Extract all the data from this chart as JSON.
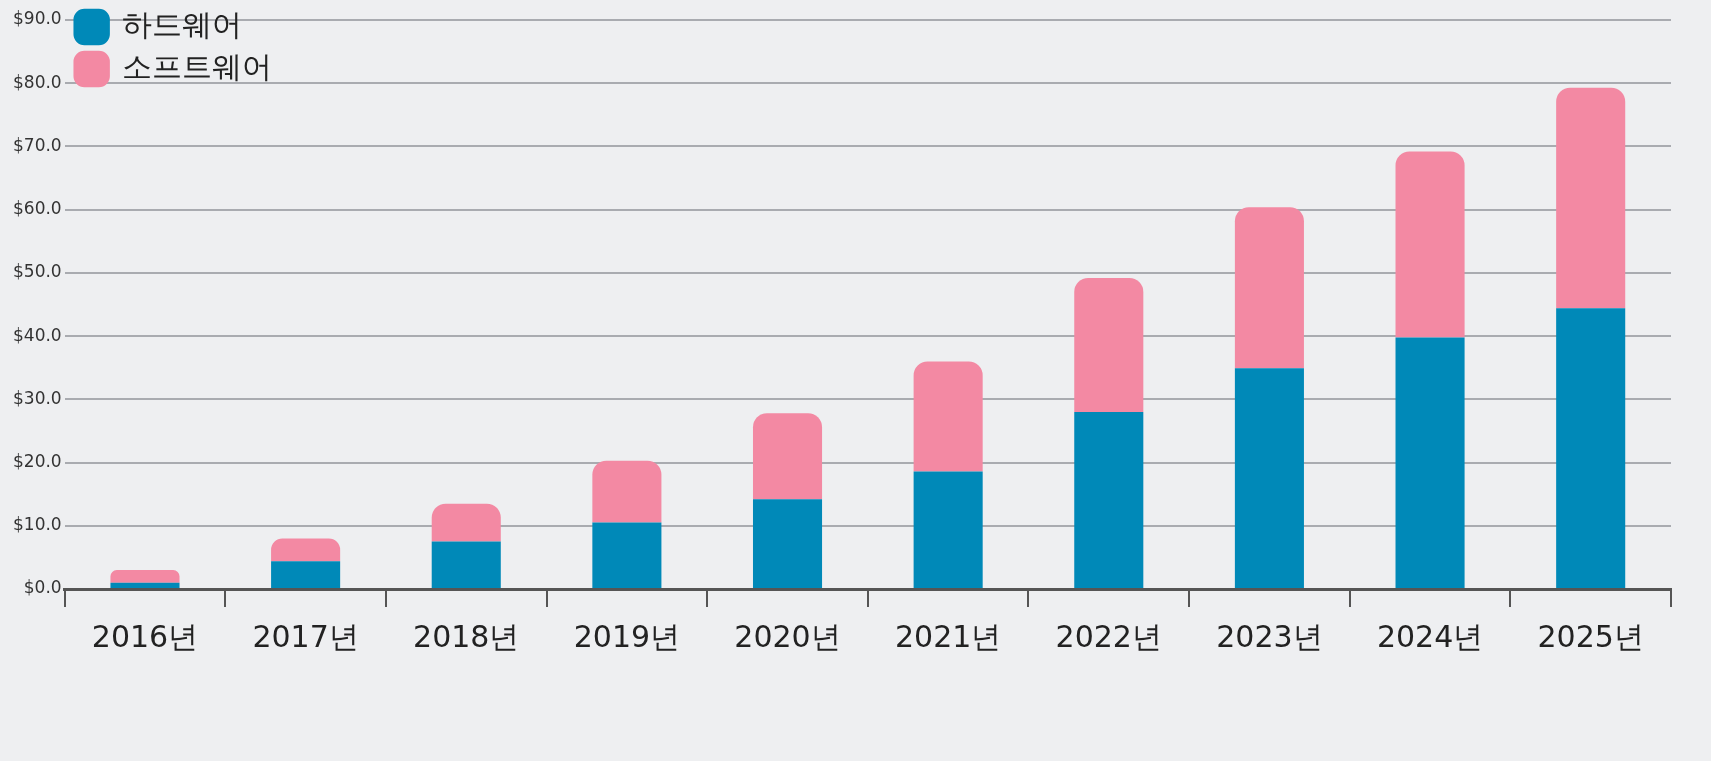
{
  "chart_data": {
    "type": "bar",
    "stacked": true,
    "categories": [
      "2016년",
      "2017년",
      "2018년",
      "2019년",
      "2020년",
      "2021년",
      "2022년",
      "2023년",
      "2024년",
      "2025년"
    ],
    "series": [
      {
        "name": "하드웨어",
        "color": "#0089b8",
        "values": [
          1,
          4.4,
          7.5,
          10.5,
          14.2,
          18.6,
          28,
          34.9,
          39.8,
          44.4
        ]
      },
      {
        "name": "소프트웨어",
        "color": "#f389a3",
        "values": [
          2,
          3.6,
          6,
          9.8,
          13.6,
          17.4,
          21.2,
          25.5,
          29.4,
          34.9
        ]
      }
    ],
    "ylim": [
      0,
      90
    ],
    "yticks": [
      {
        "value": 0,
        "label": "$0.0"
      },
      {
        "value": 10,
        "label": "$10.0"
      },
      {
        "value": 20,
        "label": "$20.0"
      },
      {
        "value": 30,
        "label": "$30.0"
      },
      {
        "value": 40,
        "label": "$40.0"
      },
      {
        "value": 50,
        "label": "$50.0"
      },
      {
        "value": 60,
        "label": "$60.0"
      },
      {
        "value": 70,
        "label": "$70.0"
      },
      {
        "value": 80,
        "label": "$80.0"
      },
      {
        "value": 90,
        "label": "$90.0"
      }
    ],
    "grid": "y",
    "legend": "top left"
  }
}
